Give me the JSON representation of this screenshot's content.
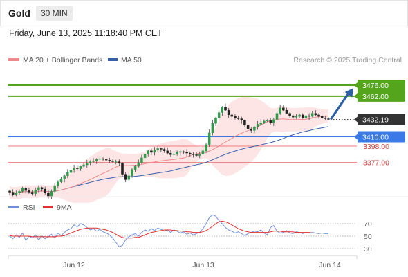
{
  "header": {
    "symbol": "Gold",
    "timeframe": "30 MIN",
    "datetime": "Friday, June 13, 2025 11:18:40 PM CET"
  },
  "legend": {
    "ma20_bb": "MA 20 + Bollinger Bands",
    "ma50": "MA 50",
    "source": "Research © 2025 Trading Central"
  },
  "colors": {
    "green_level": "#55a51c",
    "resistance_red": "#ef7b7b",
    "support_blue": "#3b79e6",
    "current_dark": "#333333",
    "ma20": "#ef8a8a",
    "ma50": "#3a5fa8",
    "bollinger_fill": "#fde0e0",
    "arrow": "#2d5fa5",
    "rsi_line": "#6f8fd8",
    "rsi_ma_line": "#e03030"
  },
  "chart_data": [
    {
      "type": "candlestick",
      "title": "Gold",
      "timeframe": "30 MIN",
      "ylim": [
        3335,
        3500
      ],
      "x_ticks": [
        "Jun 12",
        "Jun 13",
        "Jun 14"
      ],
      "levels": [
        {
          "value": 3476.0,
          "label": "3476.00",
          "kind": "target",
          "color": "#55a51c"
        },
        {
          "value": 3462.0,
          "label": "3462.00",
          "kind": "target",
          "color": "#55a51c"
        },
        {
          "value": 3432.19,
          "label": "3432.19",
          "kind": "current",
          "color": "#333333"
        },
        {
          "value": 3410.0,
          "label": "3410.00",
          "kind": "pivot",
          "color": "#3b79e6"
        },
        {
          "value": 3398.0,
          "label": "3398.00",
          "kind": "support",
          "color": "#ef7b7b"
        },
        {
          "value": 3377.0,
          "label": "3377.00",
          "kind": "support",
          "color": "#ef7b7b"
        }
      ],
      "series_close": [
        3339,
        3336,
        3338,
        3340,
        3344,
        3341,
        3339,
        3337,
        3342,
        3345,
        3343,
        3338,
        3334,
        3340,
        3347,
        3352,
        3356,
        3360,
        3364,
        3367,
        3370,
        3369,
        3372,
        3374,
        3376,
        3378,
        3379,
        3381,
        3382,
        3381,
        3380,
        3379,
        3378,
        3378,
        3376,
        3362,
        3355,
        3360,
        3368,
        3372,
        3377,
        3383,
        3388,
        3392,
        3390,
        3393,
        3395,
        3394,
        3392,
        3389,
        3387,
        3388,
        3390,
        3391,
        3390,
        3389,
        3388,
        3387,
        3386,
        3388,
        3392,
        3400,
        3415,
        3427,
        3434,
        3441,
        3448,
        3444,
        3438,
        3436,
        3434,
        3433,
        3431,
        3425,
        3420,
        3418,
        3422,
        3426,
        3428,
        3430,
        3431,
        3428,
        3432,
        3440,
        3447,
        3444,
        3440,
        3437,
        3435,
        3436,
        3438,
        3434,
        3437,
        3436,
        3440,
        3438,
        3436,
        3434,
        3433,
        3432.19
      ]
    },
    {
      "type": "line",
      "title": "RSI",
      "series": [
        {
          "name": "RSI",
          "values": [
            50,
            46,
            52,
            48,
            55,
            43,
            50,
            47,
            52,
            44,
            50,
            46,
            49,
            53,
            47,
            55,
            51,
            56,
            60,
            62,
            68,
            65,
            70,
            68,
            64,
            60,
            62,
            58,
            61,
            57,
            55,
            52,
            47,
            40,
            33,
            35,
            44,
            49,
            52,
            54,
            50,
            56,
            60,
            58,
            62,
            59,
            63,
            61,
            58,
            60,
            56,
            60,
            58,
            55,
            57,
            53,
            55,
            52,
            54,
            56,
            62,
            70,
            80,
            84,
            82,
            75,
            70,
            64,
            60,
            58,
            55,
            57,
            54,
            51,
            54,
            56,
            58,
            57,
            60,
            55,
            52,
            64,
            67,
            58,
            55,
            56,
            59,
            55,
            54,
            57,
            56,
            54,
            56,
            55,
            56,
            55,
            54,
            55,
            54,
            54
          ]
        },
        {
          "name": "9MA",
          "values": [
            51,
            50,
            50,
            50,
            50,
            50,
            50,
            49,
            49,
            49,
            49,
            49,
            49,
            49,
            49,
            50,
            50,
            51,
            53,
            55,
            57,
            59,
            61,
            62,
            63,
            63,
            63,
            63,
            62,
            61,
            60,
            58,
            56,
            53,
            50,
            48,
            47,
            47,
            47,
            48,
            48,
            50,
            52,
            54,
            56,
            57,
            58,
            59,
            60,
            60,
            60,
            59,
            59,
            58,
            58,
            57,
            57,
            56,
            56,
            56,
            57,
            59,
            62,
            66,
            70,
            73,
            74,
            73,
            71,
            68,
            65,
            62,
            60,
            58,
            57,
            56,
            56,
            56,
            56,
            56,
            56,
            57,
            58,
            58,
            58,
            57,
            57,
            57,
            57,
            56,
            56,
            56,
            56,
            56,
            55,
            55,
            55,
            55,
            55,
            55
          ]
        }
      ],
      "ylim": [
        20,
        80
      ],
      "y_ticks": [
        70,
        50,
        30
      ]
    }
  ]
}
